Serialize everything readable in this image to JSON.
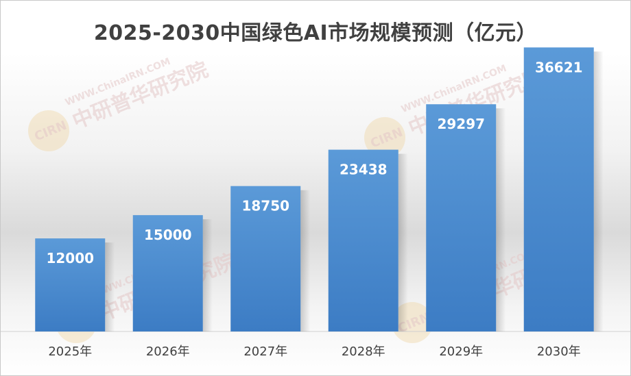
{
  "watermark": {
    "url": "WWW.ChinaIRN.COM",
    "name": "中研普华研究院",
    "logo": "CIRN"
  },
  "chart_data": {
    "type": "bar",
    "title": "2025-2030中国绿色AI市场规模预测（亿元）",
    "categories": [
      "2025年",
      "2026年",
      "2027年",
      "2028年",
      "2029年",
      "2030年"
    ],
    "values": [
      12000,
      15000,
      18750,
      23438,
      29297,
      36621
    ],
    "ylim": [
      0,
      40000
    ],
    "grid": false,
    "legend": "none",
    "bar_color": "#4a8ad0"
  }
}
